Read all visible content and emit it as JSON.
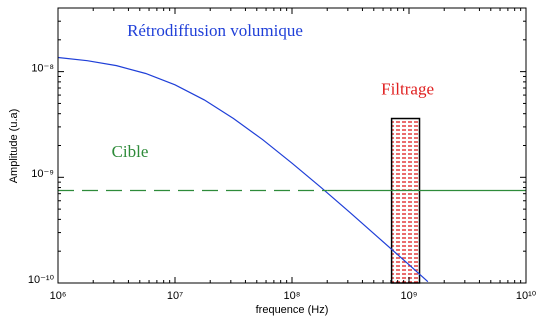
{
  "chart_data": {
    "type": "line",
    "xlabel": "frequence (Hz)",
    "ylabel": "Amplitude (u.a)",
    "log_x": true,
    "log_y": true,
    "xlim": [
      1000000,
      10000000000
    ],
    "ylim": [
      1e-10,
      4e-08
    ],
    "xticks": [
      {
        "value": 1000000,
        "label": "10⁶"
      },
      {
        "value": 10000000,
        "label": "10⁷"
      },
      {
        "value": 100000000,
        "label": "10⁸"
      },
      {
        "value": 1000000000,
        "label": "10⁹"
      },
      {
        "value": 10000000000,
        "label": "10¹⁰"
      }
    ],
    "yticks": [
      {
        "value": 1e-10,
        "label": "10⁻¹⁰"
      },
      {
        "value": 1e-09,
        "label": "10⁻⁹"
      },
      {
        "value": 1e-08,
        "label": "10⁻⁸"
      }
    ],
    "series": [
      {
        "name": "Rétrodiffusion volumique",
        "color": "#1f3fd8",
        "x": [
          1000000,
          1780000,
          3160000,
          5620000,
          10000000,
          17800000,
          31600000,
          56200000,
          100000000,
          178000000,
          316000000,
          562000000,
          1000000000,
          1450000000
        ],
        "values": [
          1.36e-08,
          1.27e-08,
          1.14e-08,
          9.6e-09,
          7.5e-09,
          5.4e-09,
          3.6e-09,
          2.27e-09,
          1.36e-09,
          7.98e-10,
          4.6e-10,
          2.62e-10,
          1.49e-10,
          1.03e-10
        ]
      },
      {
        "name": "Cible",
        "color": "#2e8b3a",
        "x": [
          1000000,
          200000000,
          10000000000
        ],
        "values": [
          7.5e-10,
          7.5e-10,
          7.5e-10
        ],
        "segment_styles": [
          "dashed",
          "solid"
        ]
      }
    ],
    "band": {
      "name": "Filtrage",
      "color": "#e02020",
      "x": [
        710000000,
        1230000000
      ],
      "top": 3.6e-09
    }
  }
}
